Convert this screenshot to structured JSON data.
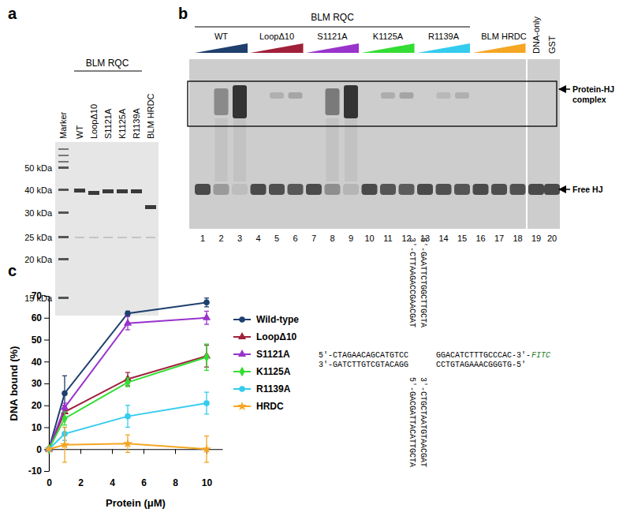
{
  "panels": {
    "a": {
      "label": "a",
      "group_label": "BLM RQC",
      "lanes": [
        "Marker",
        "WT",
        "LoopΔ10",
        "S1121A",
        "K1125A",
        "R1139A",
        "BLM HRDC"
      ],
      "ladder": [
        "50 kDa",
        "40 kDa",
        "30 kDa",
        "25 kDa",
        "20 kDa",
        "15 kDa"
      ]
    },
    "b": {
      "label": "b",
      "group_label": "BLM RQC",
      "groups": [
        "WT",
        "LoopΔ10",
        "S1121A",
        "K1125A",
        "R1139A",
        "BLM HRDC"
      ],
      "controls": [
        "DNA-only",
        "GST"
      ],
      "lanes": [
        1,
        2,
        3,
        4,
        5,
        6,
        7,
        8,
        9,
        10,
        11,
        12,
        13,
        14,
        15,
        16,
        17,
        18,
        19,
        20
      ],
      "complex_label": [
        "Protein-HJ",
        "complex"
      ],
      "free_label": "Free HJ"
    },
    "c": {
      "label": "c"
    }
  },
  "chart_data": {
    "type": "line",
    "x_label": "Protein (μM)",
    "y_label": "DNA bound (%)",
    "x": [
      0,
      1,
      5,
      10
    ],
    "xlim": [
      0,
      11
    ],
    "xticks": [
      0,
      2,
      4,
      6,
      8,
      10
    ],
    "ylim": [
      -10,
      70
    ],
    "yticks": [
      -10,
      0,
      10,
      20,
      30,
      40,
      50,
      60,
      70
    ],
    "grid": false,
    "legend": "right",
    "series": [
      {
        "name": "Wild-type",
        "color": "#1f3f6e",
        "marker": "circle",
        "values": [
          0,
          25.5,
          62,
          67
        ],
        "errors": [
          0,
          8,
          1,
          2
        ]
      },
      {
        "name": "LoopΔ10",
        "color": "#a0203a",
        "marker": "triangle",
        "values": [
          0,
          17,
          32,
          42.5
        ],
        "errors": [
          0,
          3,
          3,
          5
        ]
      },
      {
        "name": "S1121A",
        "color": "#9933cc",
        "marker": "triangle",
        "values": [
          0,
          19,
          57.5,
          60
        ],
        "errors": [
          0,
          2,
          3,
          3
        ]
      },
      {
        "name": "K1125A",
        "color": "#33dd33",
        "marker": "diamond",
        "values": [
          0,
          14,
          30.5,
          42
        ],
        "errors": [
          0,
          3,
          2,
          6
        ]
      },
      {
        "name": "R1139A",
        "color": "#33ccee",
        "marker": "circle",
        "values": [
          0,
          7,
          15,
          21
        ],
        "errors": [
          0,
          3,
          5,
          5
        ]
      },
      {
        "name": "HRDC",
        "color": "#f5a623",
        "marker": "star",
        "values": [
          0,
          2,
          2.5,
          0
        ],
        "errors": [
          0,
          8,
          4,
          6
        ]
      }
    ]
  },
  "junction": {
    "top": [
      "3'-CTTAAGACCGAACGAT",
      "5'-GAATTCTGGCTTGCTA"
    ],
    "left": [
      "5'-CTAGAACAGCATGTCC",
      "3'-GATCTTGTCGTACAGG"
    ],
    "right": [
      "GGACATCTTTGCCCAC-3'-",
      "CCTGTAGAAACGGGTG-5'"
    ],
    "tag": "FITC",
    "bottom": [
      "5'-GACGATTACATTGCTA",
      "3'-CTGCTAATGTAACGAT"
    ]
  }
}
